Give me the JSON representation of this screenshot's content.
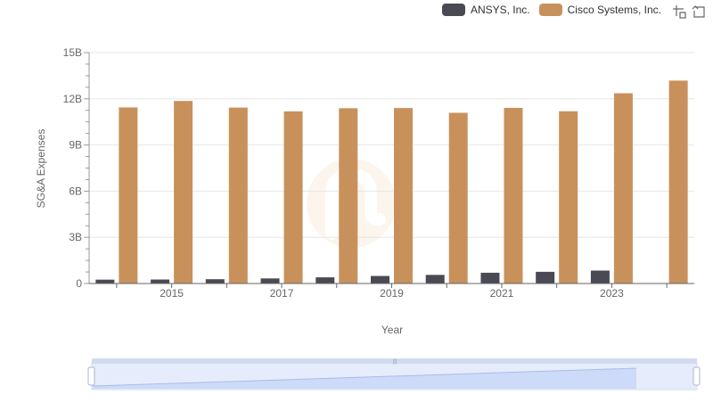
{
  "legend": {
    "items": [
      {
        "label": "ANSYS, Inc.",
        "color": "#4a4a55"
      },
      {
        "label": "Cisco Systems, Inc.",
        "color": "#c8915c"
      }
    ]
  },
  "toolbox": {
    "zoom_icon": "zoom-icon",
    "restore_icon": "restore-icon"
  },
  "chart_data": {
    "type": "bar",
    "xlabel": "Year",
    "ylabel": "SG&A Expenses",
    "ylim": [
      0,
      15000000000
    ],
    "yticks": [
      {
        "value": 0,
        "label": "0"
      },
      {
        "value": 3000000000,
        "label": "3B"
      },
      {
        "value": 6000000000,
        "label": "6B"
      },
      {
        "value": 9000000000,
        "label": "9B"
      },
      {
        "value": 12000000000,
        "label": "12B"
      },
      {
        "value": 15000000000,
        "label": "15B"
      }
    ],
    "categories": [
      "2014",
      "2015",
      "2016",
      "2017",
      "2018",
      "2019",
      "2020",
      "2021",
      "2022",
      "2023",
      "2024"
    ],
    "xtick_labels": [
      "",
      "2015",
      "",
      "2017",
      "",
      "2019",
      "",
      "2021",
      "",
      "2023",
      ""
    ],
    "series": [
      {
        "name": "ANSYS, Inc.",
        "color": "#4a4a55",
        "values": [
          250000000,
          260000000,
          280000000,
          330000000,
          400000000,
          490000000,
          560000000,
          700000000,
          760000000,
          840000000,
          null
        ]
      },
      {
        "name": "Cisco Systems, Inc.",
        "color": "#c8915c",
        "values": [
          11440000000,
          11860000000,
          11430000000,
          11180000000,
          11390000000,
          11400000000,
          11090000000,
          11410000000,
          11190000000,
          12360000000,
          13180000000
        ]
      }
    ]
  },
  "datazoom": {
    "start_percent": 0,
    "end_percent": 100
  }
}
